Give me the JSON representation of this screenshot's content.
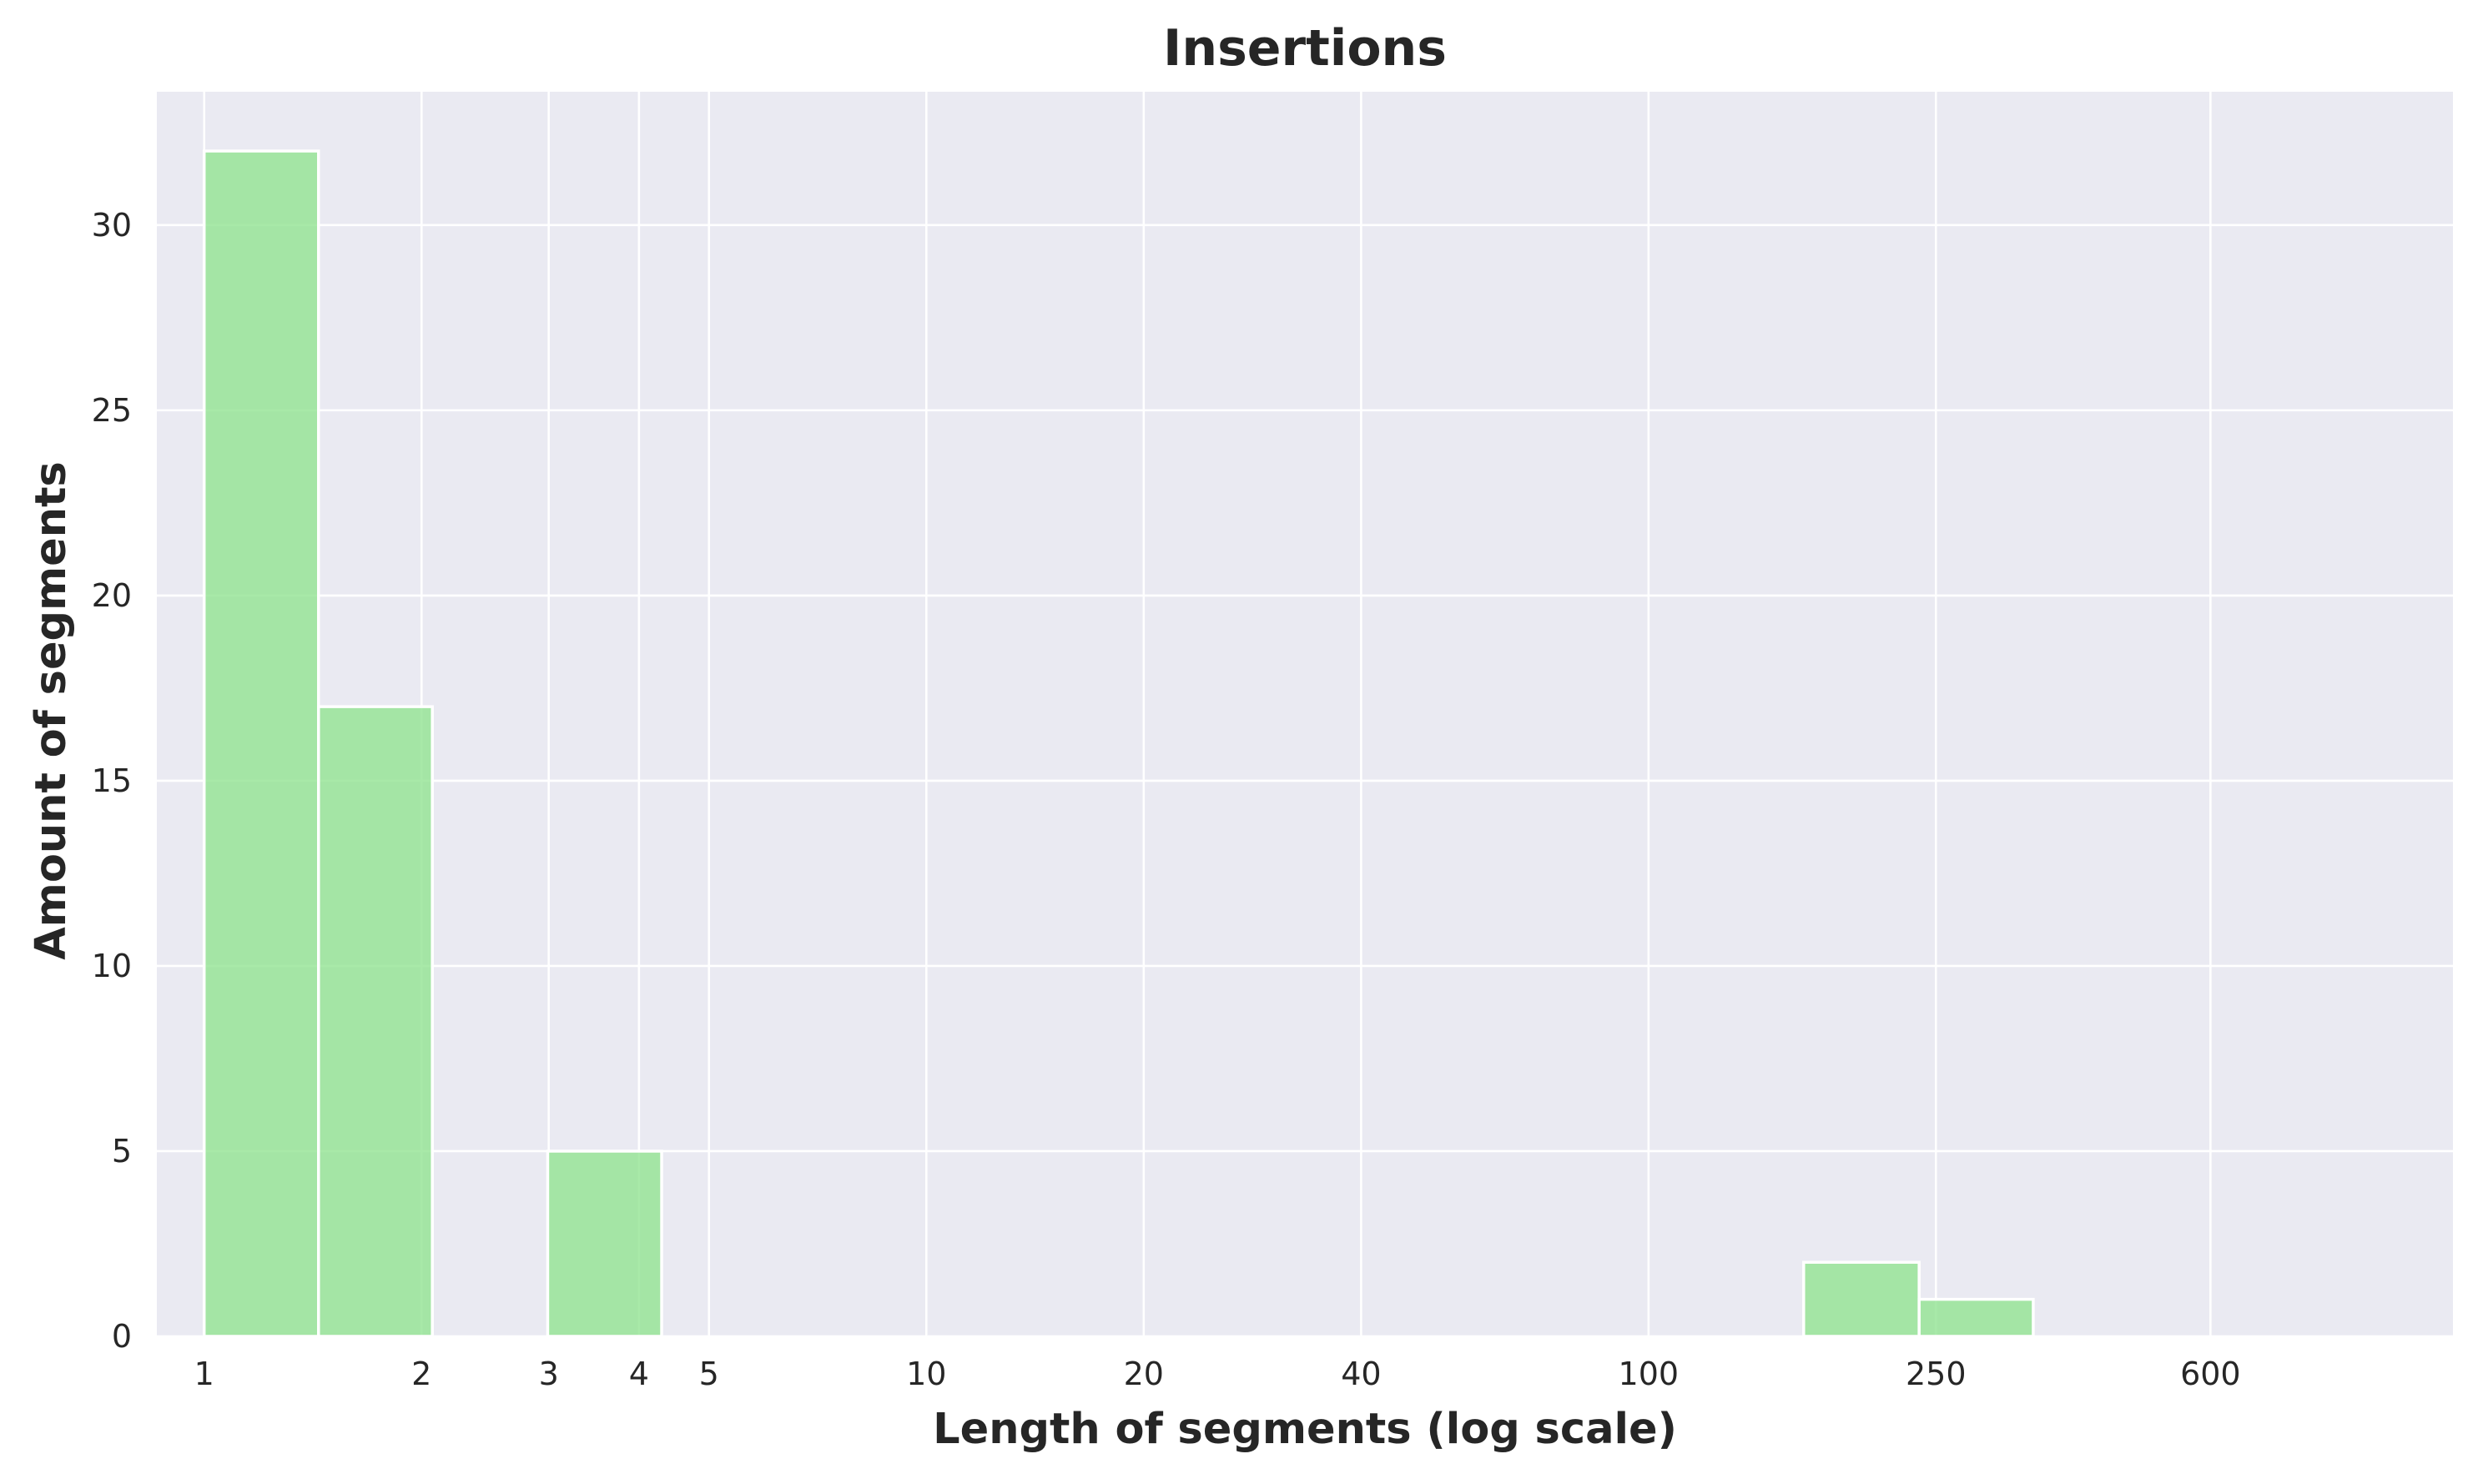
{
  "chart_data": {
    "type": "bar",
    "title": "Insertions",
    "xlabel": "Length of segments (log scale)",
    "ylabel": "Amount of segments",
    "x_scale": "log",
    "x_range": [
      0.86,
      1300
    ],
    "ylim": [
      0,
      33.6
    ],
    "grid": true,
    "x_ticks": [
      {
        "value": 1,
        "label": "1"
      },
      {
        "value": 2,
        "label": "2"
      },
      {
        "value": 3,
        "label": "3"
      },
      {
        "value": 4,
        "label": "4"
      },
      {
        "value": 5,
        "label": "5"
      },
      {
        "value": 10,
        "label": "10"
      },
      {
        "value": 20,
        "label": "20"
      },
      {
        "value": 40,
        "label": "40"
      },
      {
        "value": 100,
        "label": "100"
      },
      {
        "value": 250,
        "label": "250"
      },
      {
        "value": 600,
        "label": "600"
      }
    ],
    "y_ticks": [
      {
        "value": 0,
        "label": "0"
      },
      {
        "value": 5,
        "label": "5"
      },
      {
        "value": 10,
        "label": "10"
      },
      {
        "value": 15,
        "label": "15"
      },
      {
        "value": 20,
        "label": "20"
      },
      {
        "value": 25,
        "label": "25"
      },
      {
        "value": 30,
        "label": "30"
      }
    ],
    "bins": [
      {
        "x0": 1,
        "x1": 1.44,
        "count": 32
      },
      {
        "x0": 1.44,
        "x1": 2.07,
        "count": 17
      },
      {
        "x0": 2.07,
        "x1": 2.99,
        "count": 0
      },
      {
        "x0": 2.99,
        "x1": 4.3,
        "count": 5
      },
      {
        "x0": 4.3,
        "x1": 6.19,
        "count": 0
      },
      {
        "x0": 6.19,
        "x1": 8.91,
        "count": 0
      },
      {
        "x0": 8.91,
        "x1": 12.8,
        "count": 0
      },
      {
        "x0": 12.8,
        "x1": 18.5,
        "count": 0
      },
      {
        "x0": 18.5,
        "x1": 26.6,
        "count": 0
      },
      {
        "x0": 26.6,
        "x1": 38.3,
        "count": 0
      },
      {
        "x0": 38.3,
        "x1": 55.1,
        "count": 0
      },
      {
        "x0": 55.1,
        "x1": 79.4,
        "count": 0
      },
      {
        "x0": 79.4,
        "x1": 114,
        "count": 0
      },
      {
        "x0": 114,
        "x1": 164,
        "count": 0
      },
      {
        "x0": 164,
        "x1": 237,
        "count": 2
      },
      {
        "x0": 237,
        "x1": 341,
        "count": 1
      },
      {
        "x0": 341,
        "x1": 490,
        "count": 0
      },
      {
        "x0": 490,
        "x1": 706,
        "count": 0
      },
      {
        "x0": 706,
        "x1": 1017,
        "count": 0
      }
    ],
    "colors": {
      "bar_fill": "#90e390",
      "bar_edge": "#ffffff",
      "plot_background": "#eaeaf2",
      "grid": "#ffffff",
      "text": "#262626"
    }
  }
}
